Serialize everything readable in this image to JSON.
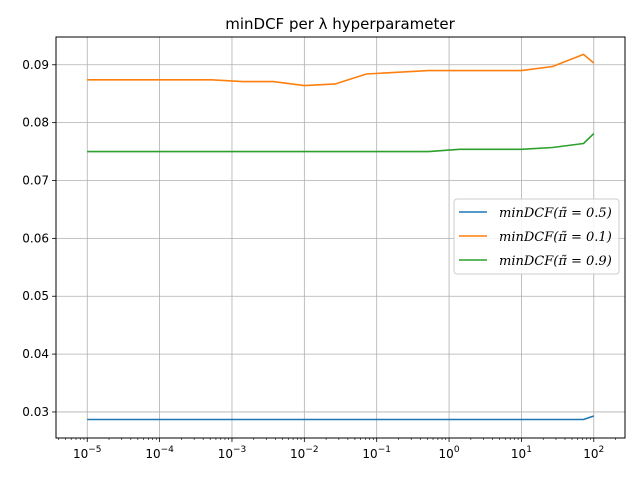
{
  "chart_data": {
    "type": "line",
    "title": "minDCF per λ hyperparameter",
    "xlabel": "",
    "ylabel": "",
    "xscale": "log",
    "xlim": [
      3.7e-06,
      270
    ],
    "ylim": [
      0.0255,
      0.0948
    ],
    "grid": true,
    "legend_position": "center-right",
    "x_tick_labels": [
      "10^-5",
      "10^-4",
      "10^-3",
      "10^-2",
      "10^-1",
      "10^0",
      "10^1",
      "10^2"
    ],
    "y_tick_labels": [
      "0.03",
      "0.04",
      "0.05",
      "0.06",
      "0.07",
      "0.08",
      "0.09"
    ],
    "x": [
      1e-05,
      2.7e-05,
      7.2e-05,
      0.00019,
      0.00052,
      0.0014,
      0.0037,
      0.01,
      0.027,
      0.072,
      0.19,
      0.52,
      1.4,
      3.7,
      10,
      27,
      72,
      100
    ],
    "series": [
      {
        "name": "minDCF(π̃ = 0.5)",
        "color": "#1f77b4",
        "values": [
          0.0287,
          0.0287,
          0.0287,
          0.0287,
          0.0287,
          0.0287,
          0.0287,
          0.0287,
          0.0287,
          0.0287,
          0.0287,
          0.0287,
          0.0287,
          0.0287,
          0.0287,
          0.0287,
          0.0287,
          0.0293
        ]
      },
      {
        "name": "minDCF(π̃ = 0.1)",
        "color": "#ff7f0e",
        "values": [
          0.0874,
          0.0874,
          0.0874,
          0.0874,
          0.0874,
          0.0871,
          0.0871,
          0.0864,
          0.0867,
          0.0884,
          0.0887,
          0.089,
          0.089,
          0.089,
          0.089,
          0.0897,
          0.0918,
          0.0903
        ]
      },
      {
        "name": "minDCF(π̃ = 0.9)",
        "color": "#2ca02c",
        "values": [
          0.075,
          0.075,
          0.075,
          0.075,
          0.075,
          0.075,
          0.075,
          0.075,
          0.075,
          0.075,
          0.075,
          0.075,
          0.0754,
          0.0754,
          0.0754,
          0.0757,
          0.0764,
          0.0781
        ]
      }
    ]
  }
}
